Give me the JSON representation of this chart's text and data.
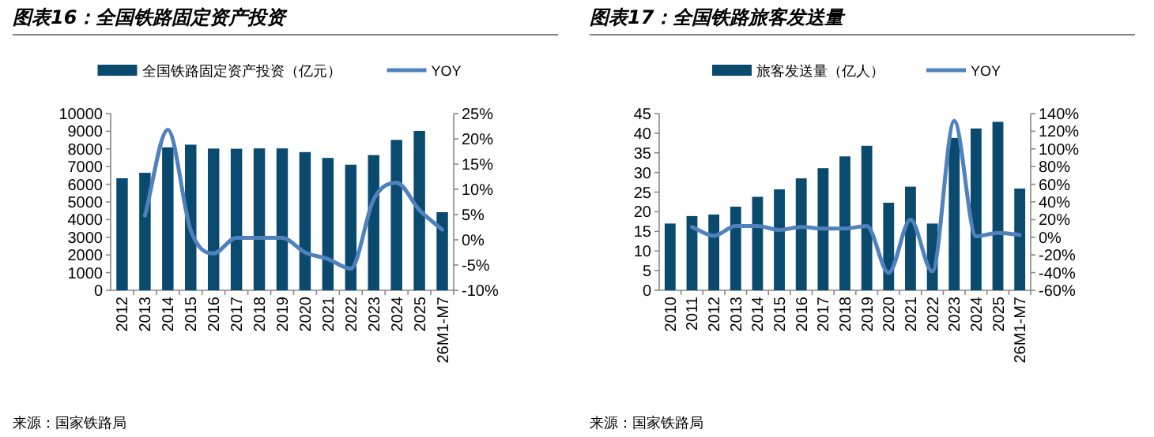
{
  "chart_data": [
    {
      "type": "bar",
      "title": "图表16：全国铁路固定资产投资",
      "legend": "top",
      "categories": [
        "2012",
        "2013",
        "2014",
        "2015",
        "2016",
        "2017",
        "2018",
        "2019",
        "2020",
        "2021",
        "2022",
        "2023",
        "2024",
        "2025",
        "26M1-M7"
      ],
      "series": [
        {
          "name": "全国铁路固定资产投资（亿元）",
          "color": "#0b4a6f",
          "values": [
            6340,
            6650,
            8090,
            8240,
            8020,
            8010,
            8030,
            8030,
            7820,
            7490,
            7110,
            7650,
            8510,
            9020,
            4420
          ]
        },
        {
          "name": "YOY",
          "type": "line",
          "axis": "y2",
          "color": "#4f81bd",
          "values": [
            null,
            4.8,
            21.8,
            1.9,
            -2.7,
            0.4,
            0.4,
            0.4,
            -2.5,
            -3.8,
            -5.7,
            8,
            11.3,
            5.9,
            2
          ]
        }
      ],
      "ylim": [
        0,
        10000
      ],
      "yticks": [
        0,
        1000,
        2000,
        3000,
        4000,
        5000,
        6000,
        7000,
        8000,
        9000,
        10000
      ],
      "y2lim": [
        -10,
        25
      ],
      "y2ticks": [
        {
          "value": -10,
          "label": "-10%"
        },
        {
          "value": -5,
          "label": "-5%"
        },
        {
          "value": 0,
          "label": "0%"
        },
        {
          "value": 5,
          "label": "5%"
        },
        {
          "value": 10,
          "label": "10%"
        },
        {
          "value": 15,
          "label": "15%"
        },
        {
          "value": 20,
          "label": "20%"
        },
        {
          "value": 25,
          "label": "25%"
        }
      ],
      "annotations": [
        "来源：国家铁路局"
      ]
    },
    {
      "type": "bar",
      "title": "图表17：全国铁路旅客发送量",
      "legend": "top",
      "categories": [
        "2010",
        "2011",
        "2012",
        "2013",
        "2014",
        "2015",
        "2016",
        "2017",
        "2018",
        "2019",
        "2020",
        "2021",
        "2022",
        "2023",
        "2024",
        "2025",
        "26M1-M7"
      ],
      "series": [
        {
          "name": "旅客发送量（亿人）",
          "color": "#0b4a6f",
          "values": [
            17.0,
            18.9,
            19.3,
            21.3,
            23.8,
            25.7,
            28.5,
            31.1,
            34.1,
            36.8,
            22.3,
            26.4,
            17.0,
            38.8,
            41.2,
            42.9,
            25.9
          ]
        },
        {
          "name": "YOY",
          "type": "line",
          "axis": "y2",
          "color": "#4f81bd",
          "values": [
            null,
            11.6,
            1.7,
            12.7,
            12.7,
            8.3,
            11.6,
            9.9,
            9.9,
            12.7,
            -40.2,
            19.8,
            -38.6,
            131.7,
            1.1,
            5,
            2.8
          ]
        }
      ],
      "ylim": [
        0,
        45
      ],
      "yticks": [
        0,
        5,
        10,
        15,
        20,
        25,
        30,
        35,
        40,
        45
      ],
      "y2lim": [
        -60,
        140
      ],
      "y2ticks": [
        {
          "value": -60,
          "label": "-60%"
        },
        {
          "value": -40,
          "label": "-40%"
        },
        {
          "value": -20,
          "label": "-20%"
        },
        {
          "value": 0,
          "label": "0%"
        },
        {
          "value": 20,
          "label": "20%"
        },
        {
          "value": 40,
          "label": "40%"
        },
        {
          "value": 60,
          "label": "60%"
        },
        {
          "value": 80,
          "label": "80%"
        },
        {
          "value": 100,
          "label": "100%"
        },
        {
          "value": 120,
          "label": "120%"
        },
        {
          "value": 140,
          "label": "140%"
        }
      ],
      "annotations": [
        "来源：国家铁路局"
      ]
    }
  ]
}
